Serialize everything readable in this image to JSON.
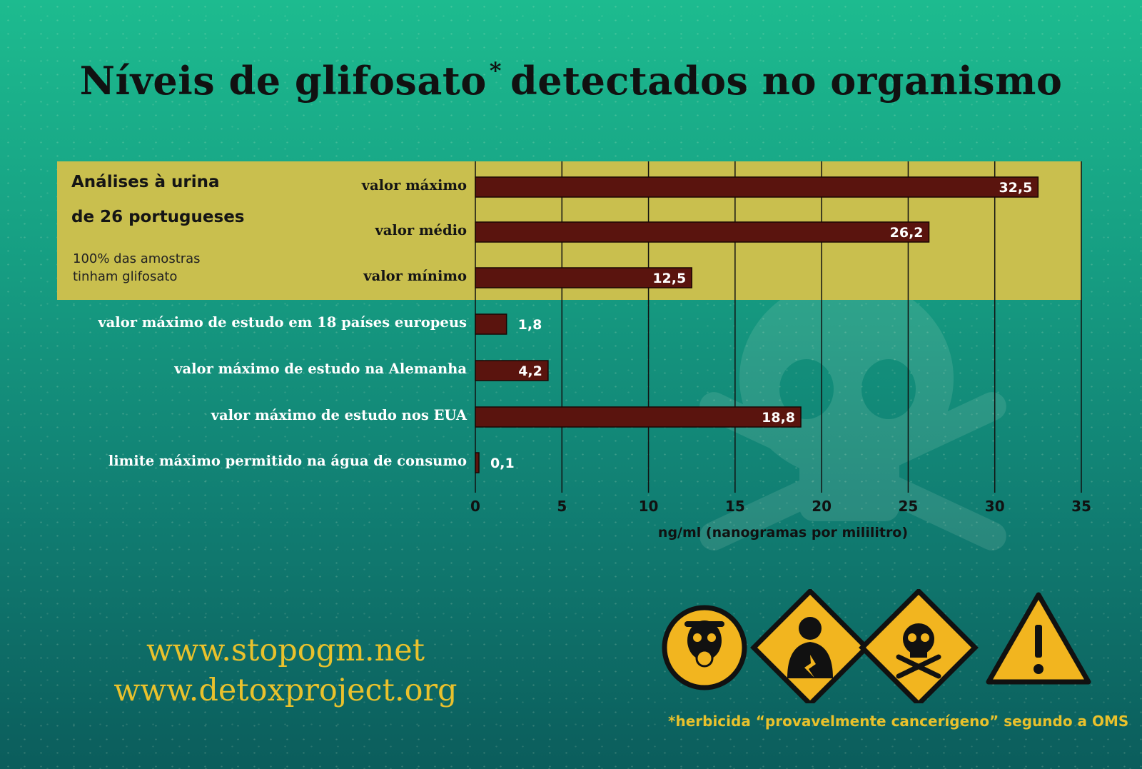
{
  "title": {
    "text": "Níveis de glifosato",
    "asterisk": "*",
    "rest": "detectados no organismo"
  },
  "sidebox": {
    "title_line1": "Análises à urina",
    "title_line2": "de 26 portugueses",
    "note": "100% das amostras tinham glifosato"
  },
  "chart_data": {
    "type": "bar",
    "orientation": "horizontal",
    "categories": [
      "valor máximo",
      "valor médio",
      "valor mínimo",
      "valor máximo de estudo em 18 países europeus",
      "valor máximo de estudo na Alemanha",
      "valor máximo de estudo nos EUA",
      "limite máximo permitido na água de consumo"
    ],
    "values": [
      32.5,
      26.2,
      12.5,
      1.8,
      4.2,
      18.8,
      0.1
    ],
    "value_labels": [
      "32,5",
      "26,2",
      "12,5",
      "1,8",
      "4,2",
      "18,8",
      "0,1"
    ],
    "xlabel": "ng/ml (nanogramas por mililitro)",
    "xlim": [
      0,
      35
    ],
    "xticks": [
      "0",
      "5",
      "10",
      "15",
      "20",
      "25",
      "30",
      "35"
    ],
    "grid": true,
    "highlighted_group": [
      0,
      1,
      2
    ]
  },
  "urls": [
    "www.stopogm.net",
    "www.detoxproject.org"
  ],
  "footnote": "*herbicida “provavelmente cancerígeno” segundo a OMS",
  "hazard_icons": [
    "gas-mask-icon",
    "health-hazard-icon",
    "skull-crossbones-icon",
    "warning-icon"
  ],
  "colors": {
    "bar": "#5a140e",
    "highlight_box": "#c9bf4e",
    "accent_yellow": "#e9c12c",
    "title": "#111111"
  }
}
